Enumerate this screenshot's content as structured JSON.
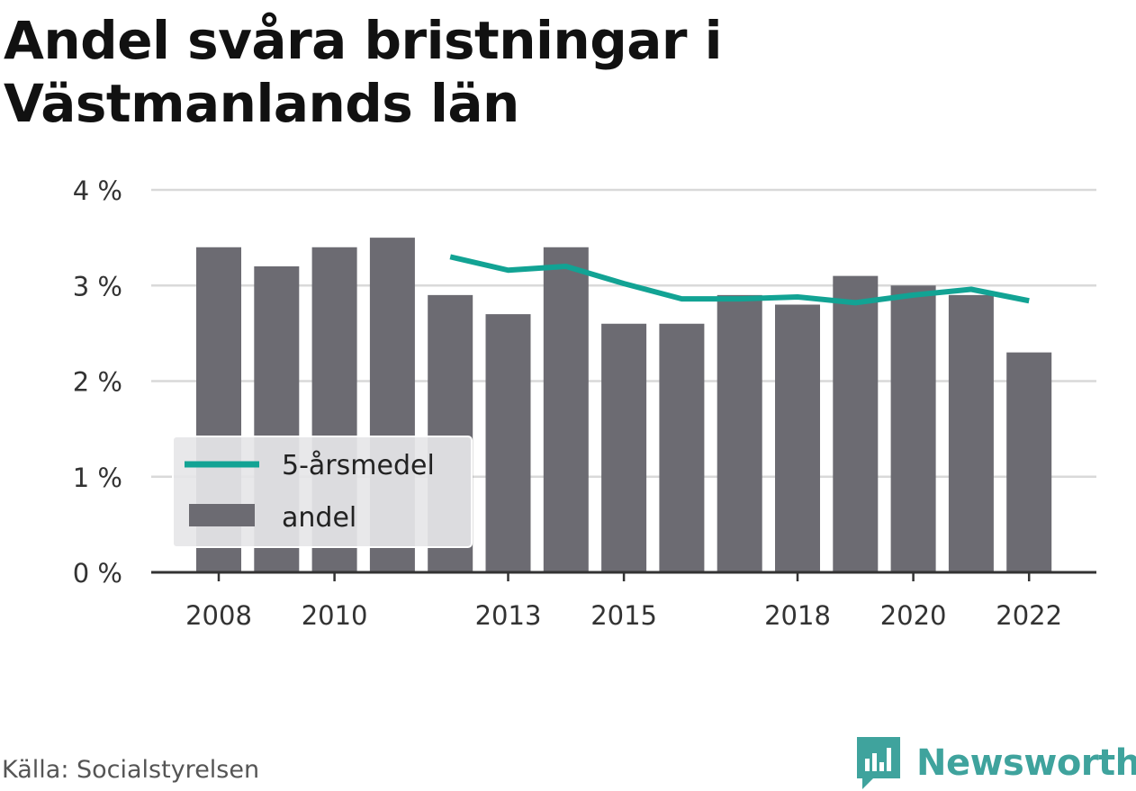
{
  "title": "Andel svåra bristningar i Västmanlands län",
  "source": "Källa: Socialstyrelsen",
  "brand": {
    "name": "Newsworthy",
    "icon": "newsworthy-logo-icon",
    "color": "#3fa39d"
  },
  "colors": {
    "bar": "#6c6b72",
    "line": "#12a394",
    "grid": "#d9d9d9",
    "axis": "#333333",
    "legend_bg": "#e6e6e8"
  },
  "chart_data": {
    "type": "bar",
    "title": "Andel svåra bristningar i Västmanlands län",
    "xlabel": "",
    "ylabel": "",
    "ylim": [
      0,
      4
    ],
    "yticks": [
      0,
      1,
      2,
      3,
      4
    ],
    "ytick_labels": [
      "0 %",
      "1 %",
      "2 %",
      "3 %",
      "4 %"
    ],
    "xtick_labels": [
      "2008",
      "2010",
      "2013",
      "2015",
      "2018",
      "2020",
      "2022"
    ],
    "grid": true,
    "legend_position": "bottom-left",
    "categories": [
      "2008",
      "2009",
      "2010",
      "2011",
      "2012",
      "2013",
      "2014",
      "2015",
      "2016",
      "2017",
      "2018",
      "2019",
      "2020",
      "2021",
      "2022"
    ],
    "series": [
      {
        "name": "andel",
        "type": "bar",
        "values": [
          3.4,
          3.2,
          3.4,
          3.5,
          2.9,
          2.7,
          3.4,
          2.6,
          2.6,
          2.9,
          2.8,
          3.1,
          3.0,
          2.9,
          2.3
        ]
      },
      {
        "name": "5-årsmedel",
        "type": "line",
        "values": [
          null,
          null,
          null,
          null,
          3.3,
          3.16,
          3.2,
          3.02,
          2.86,
          2.86,
          2.88,
          2.82,
          2.9,
          2.96,
          2.84
        ]
      }
    ]
  }
}
